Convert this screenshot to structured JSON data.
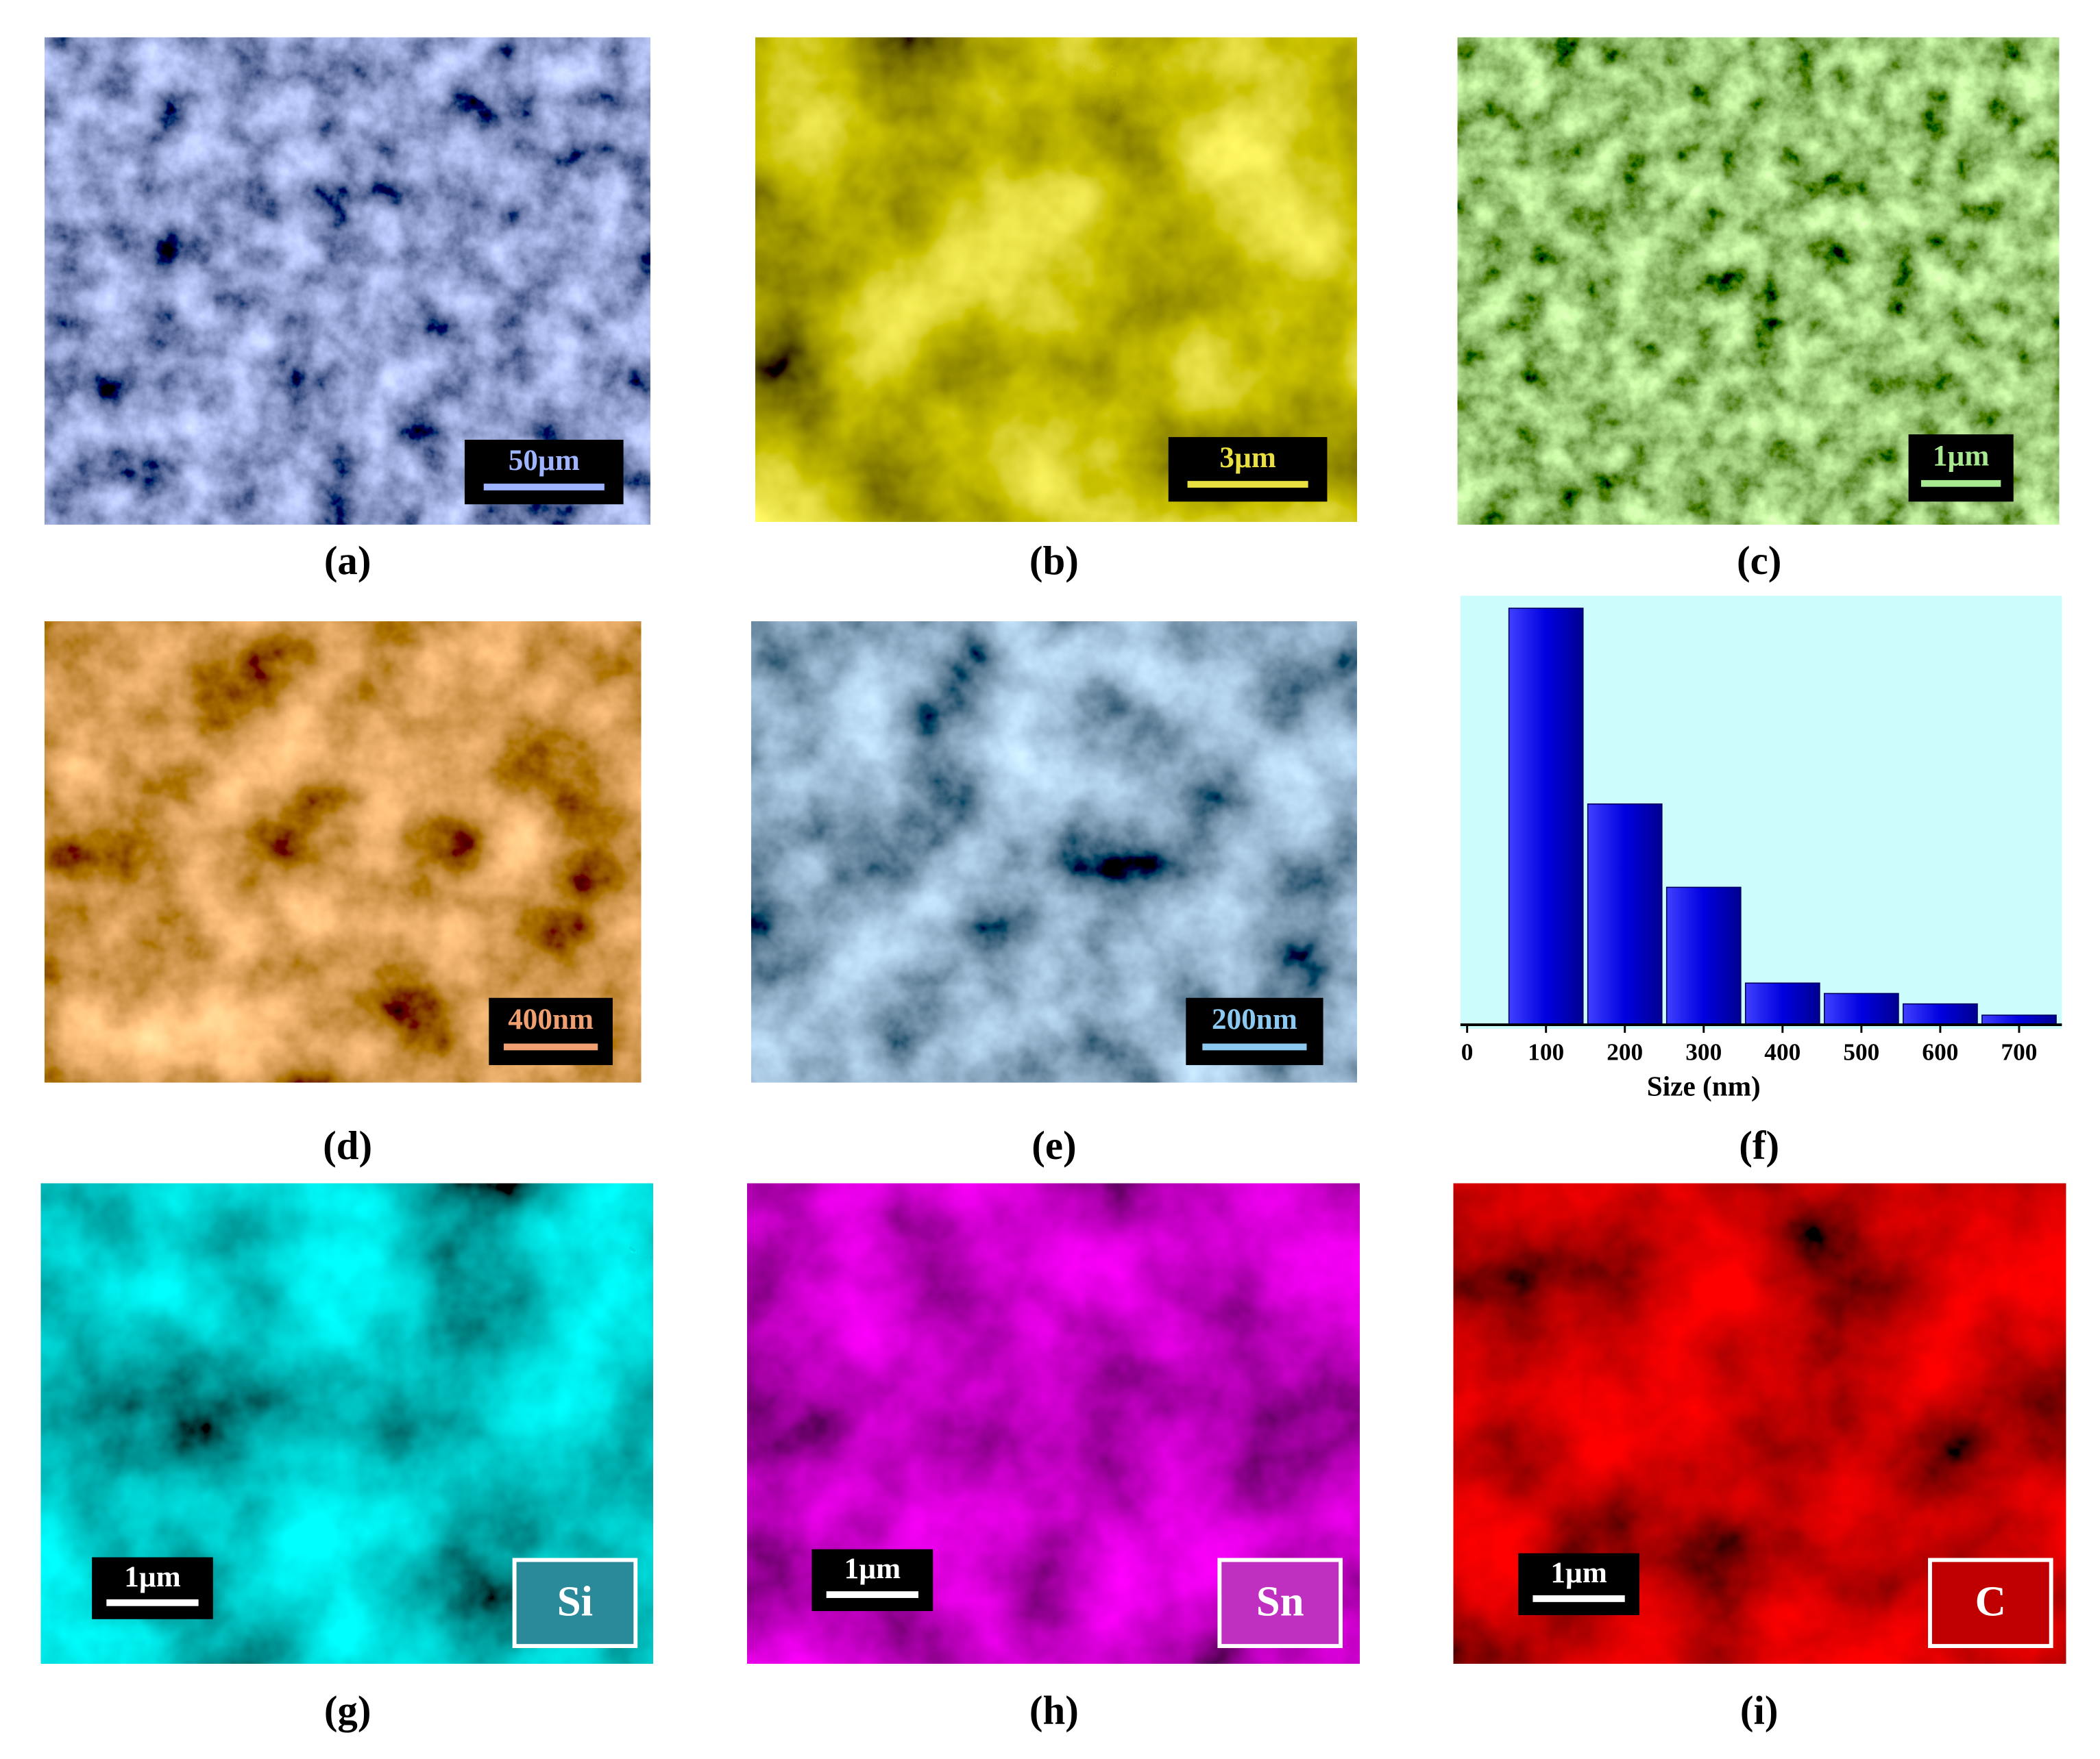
{
  "panels": [
    {
      "label": "(a)",
      "scale_bar": "50µm"
    },
    {
      "label": "(b)",
      "scale_bar": "3µm"
    },
    {
      "label": "(c)",
      "scale_bar": "1µm"
    },
    {
      "label": "(d)",
      "scale_bar": "400nm"
    },
    {
      "label": "(e)",
      "scale_bar": "200nm"
    },
    {
      "label": "(f)"
    },
    {
      "label": "(g)",
      "scale_bar": "1µm",
      "element": "Si"
    },
    {
      "label": "(h)",
      "scale_bar": "1µm",
      "element": "Sn"
    },
    {
      "label": "(i)",
      "scale_bar": "1µm",
      "element": "C"
    }
  ],
  "chart_data": {
    "type": "bar",
    "x_label": "Size (nm)",
    "x": [
      100,
      200,
      300,
      400,
      500,
      600,
      700
    ],
    "values": [
      100,
      53,
      33,
      10,
      7.5,
      5,
      2.3
    ],
    "color": "#0000e0",
    "xlim": [
      0,
      750
    ],
    "xticks": [
      0,
      100,
      200,
      300,
      400,
      500,
      600,
      700
    ],
    "ylim": [
      0,
      103
    ]
  }
}
